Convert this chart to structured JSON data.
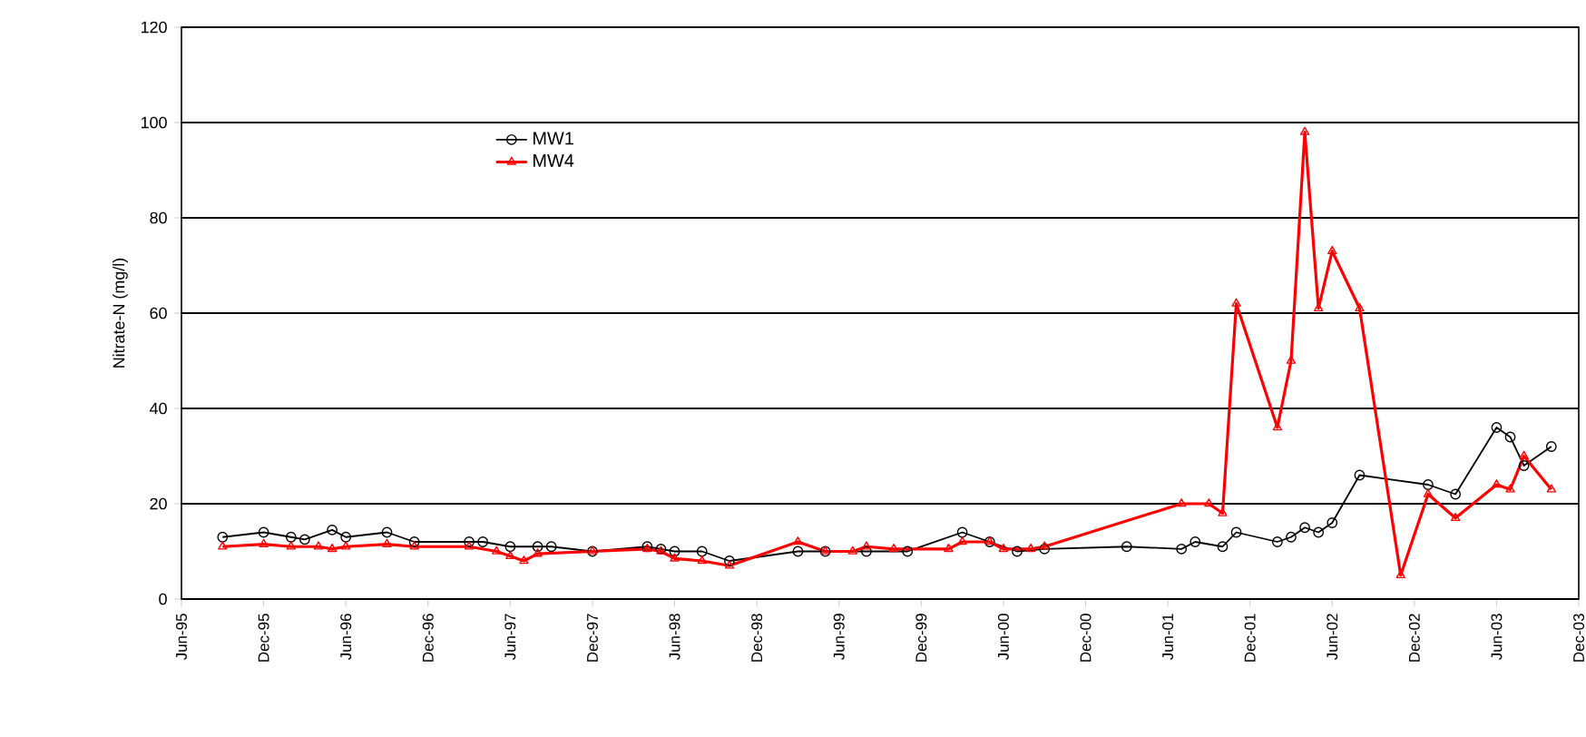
{
  "chart_data": {
    "type": "line",
    "ylabel": "Nitrate-N (mg/l)",
    "xlim": [
      "1995-06",
      "2003-12"
    ],
    "xticks": [
      {
        "value": "1995-06",
        "label": "Jun-95"
      },
      {
        "value": "1995-12",
        "label": "Dec-95"
      },
      {
        "value": "1996-06",
        "label": "Jun-96"
      },
      {
        "value": "1996-12",
        "label": "Dec-96"
      },
      {
        "value": "1997-06",
        "label": "Jun-97"
      },
      {
        "value": "1997-12",
        "label": "Dec-97"
      },
      {
        "value": "1998-06",
        "label": "Jun-98"
      },
      {
        "value": "1998-12",
        "label": "Dec-98"
      },
      {
        "value": "1999-06",
        "label": "Jun-99"
      },
      {
        "value": "1999-12",
        "label": "Dec-99"
      },
      {
        "value": "2000-06",
        "label": "Jun-00"
      },
      {
        "value": "2000-12",
        "label": "Dec-00"
      },
      {
        "value": "2001-06",
        "label": "Jun-01"
      },
      {
        "value": "2001-12",
        "label": "Dec-01"
      },
      {
        "value": "2002-06",
        "label": "Jun-02"
      },
      {
        "value": "2002-12",
        "label": "Dec-02"
      },
      {
        "value": "2003-06",
        "label": "Jun-03"
      },
      {
        "value": "2003-12",
        "label": "Dec-03"
      }
    ],
    "ylim": [
      0,
      120
    ],
    "yticks": [
      0,
      20,
      40,
      60,
      80,
      100,
      120
    ],
    "grid": "y",
    "legend": "top left",
    "line_style": "solid",
    "series": [
      {
        "name": "MW1",
        "color": "#000000",
        "marker": "circle",
        "x": [
          "1995-09",
          "1995-12",
          "1996-02",
          "1996-03",
          "1996-05",
          "1996-06",
          "1996-09",
          "1996-11",
          "1997-03",
          "1997-04",
          "1997-06",
          "1997-08",
          "1997-09",
          "1997-12",
          "1998-04",
          "1998-05",
          "1998-06",
          "1998-08",
          "1998-10",
          "1999-03",
          "1999-05",
          "1999-08",
          "1999-11",
          "2000-03",
          "2000-05",
          "2000-07",
          "2000-09",
          "2001-03",
          "2001-07",
          "2001-08",
          "2001-10",
          "2001-11",
          "2002-02",
          "2002-03",
          "2002-04",
          "2002-05",
          "2002-06",
          "2002-08",
          "2003-01",
          "2003-03",
          "2003-06",
          "2003-07",
          "2003-08",
          "2003-10"
        ],
        "values": [
          13,
          14,
          13,
          12.5,
          14.5,
          13,
          14,
          12,
          12,
          12,
          11,
          11,
          11,
          10,
          11,
          10.5,
          10,
          10,
          8,
          10,
          10,
          10,
          10,
          14,
          12,
          10,
          10.5,
          11,
          10.5,
          12,
          11,
          14,
          12,
          13,
          15,
          14,
          16,
          26,
          24,
          22,
          36,
          34,
          28,
          32
        ]
      },
      {
        "name": "MW4",
        "color": "#ff0000",
        "marker": "triangle",
        "x": [
          "1995-09",
          "1995-12",
          "1996-02",
          "1996-04",
          "1996-05",
          "1996-06",
          "1996-09",
          "1996-11",
          "1997-03",
          "1997-05",
          "1997-06",
          "1997-07",
          "1997-08",
          "1997-12",
          "1998-04",
          "1998-05",
          "1998-06",
          "1998-08",
          "1998-10",
          "1999-03",
          "1999-05",
          "1999-07",
          "1999-08",
          "1999-10",
          "2000-02",
          "2000-03",
          "2000-05",
          "2000-06",
          "2000-08",
          "2000-09",
          "2001-07",
          "2001-09",
          "2001-10",
          "2001-11",
          "2002-02",
          "2002-03",
          "2002-04",
          "2002-05",
          "2002-06",
          "2002-08",
          "2002-11",
          "2003-01",
          "2003-03",
          "2003-06",
          "2003-07",
          "2003-08",
          "2003-10"
        ],
        "values": [
          11,
          11.5,
          11,
          11,
          10.5,
          11,
          11.5,
          11,
          11,
          10,
          9,
          8,
          9.5,
          10,
          10.5,
          10,
          8.5,
          8,
          7,
          12,
          10,
          10,
          11,
          10.5,
          10.5,
          12,
          12,
          10.5,
          10.5,
          11,
          20,
          20,
          18,
          62,
          36,
          50,
          98,
          61,
          73,
          61,
          5,
          22,
          17,
          24,
          23,
          30,
          23
        ]
      }
    ]
  }
}
